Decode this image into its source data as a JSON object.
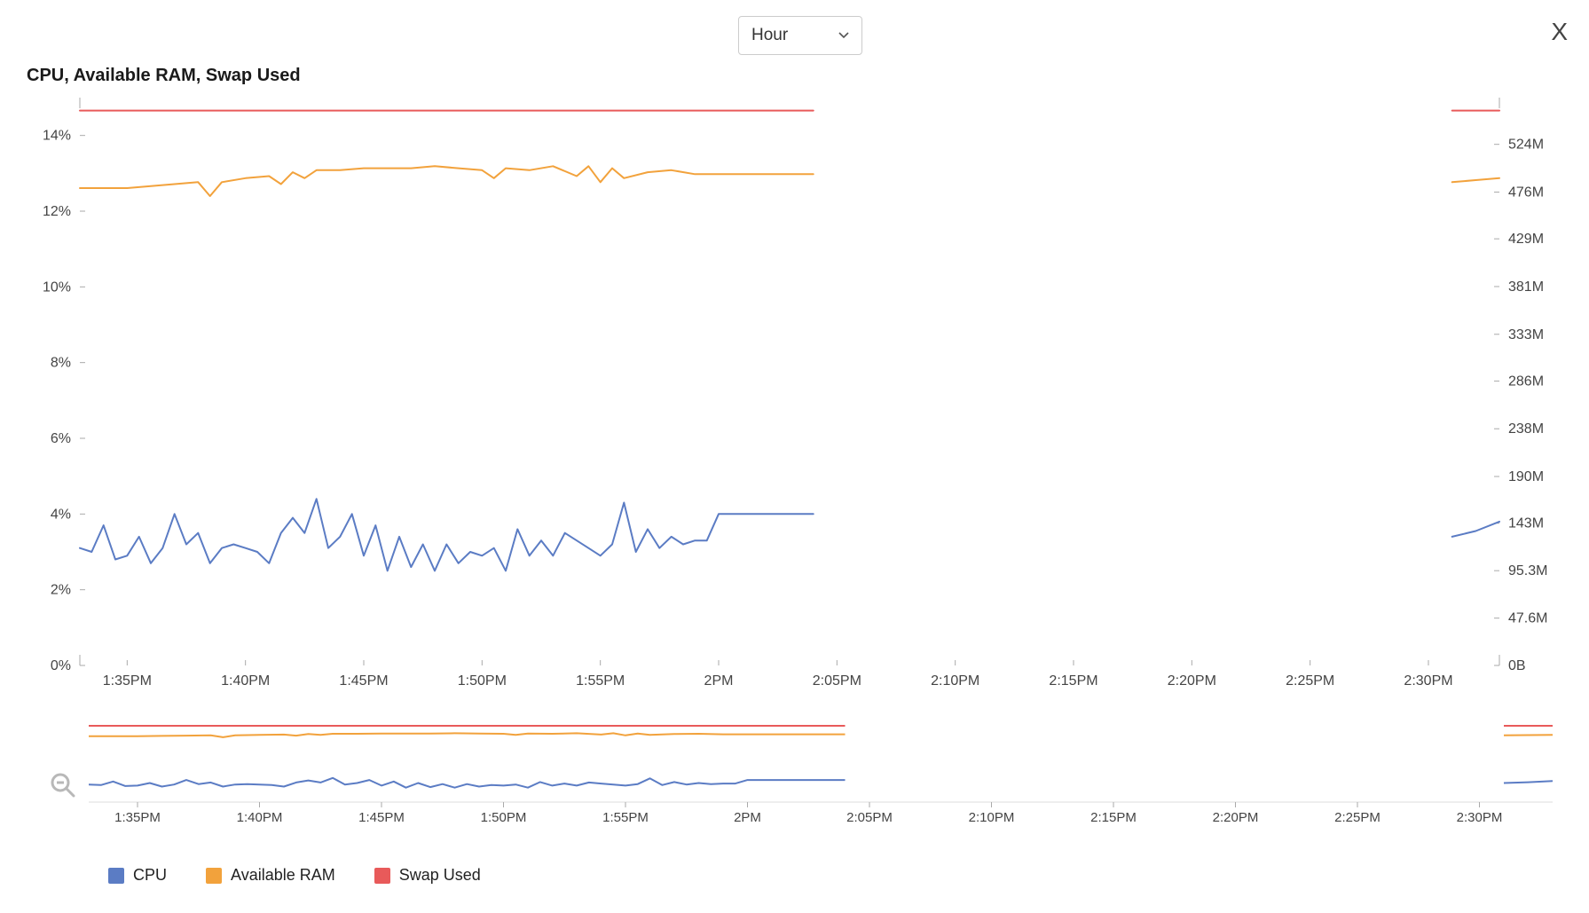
{
  "dropdown": {
    "selected": "Hour"
  },
  "close_label": "X",
  "chart": {
    "type": "line",
    "title": "CPU, Available RAM, Swap Used",
    "background_color": "#ffffff",
    "axis_color": "#666666",
    "tick_font_size": 16,
    "tick_color": "#444444",
    "title_font_size": 20,
    "left_axis": {
      "min": 0,
      "max": 15,
      "ticks": [
        0,
        2,
        4,
        6,
        8,
        10,
        12,
        14
      ],
      "labels": [
        "0%",
        "2%",
        "4%",
        "6%",
        "8%",
        "10%",
        "12%",
        "14%"
      ]
    },
    "right_axis": {
      "min": 0,
      "max": 571,
      "ticks": [
        0,
        47.6,
        95.3,
        143,
        190,
        238,
        286,
        333,
        381,
        429,
        476,
        524
      ],
      "labels": [
        "0B",
        "47.6M",
        "95.3M",
        "143M",
        "190M",
        "238M",
        "286M",
        "333M",
        "381M",
        "429M",
        "476M",
        "524M"
      ]
    },
    "x_axis": {
      "min": 0,
      "max": 60,
      "ticks": [
        2,
        7,
        12,
        17,
        22,
        27,
        32,
        37,
        42,
        47,
        52,
        57
      ],
      "labels": [
        "1:35PM",
        "1:40PM",
        "1:45PM",
        "1:50PM",
        "1:55PM",
        "2PM",
        "2:05PM",
        "2:10PM",
        "2:15PM",
        "2:20PM",
        "2:25PM",
        "2:30PM"
      ]
    },
    "series": [
      {
        "name": "CPU",
        "axis": "left",
        "color": "#5b7cc4",
        "width": 2,
        "segments": [
          {
            "x": [
              0,
              0.5,
              1,
              1.5,
              2,
              2.5,
              3,
              3.5,
              4,
              4.5,
              5,
              5.5,
              6,
              6.5,
              7,
              7.5,
              8,
              8.5,
              9,
              9.5,
              10,
              10.5,
              11,
              11.5,
              12,
              12.5,
              13,
              13.5,
              14,
              14.5,
              15,
              15.5,
              16,
              16.5,
              17,
              17.5,
              18,
              18.5,
              19,
              19.5,
              20,
              20.5,
              21,
              21.5,
              22,
              22.5,
              23,
              23.5,
              24,
              24.5,
              25,
              25.5,
              26,
              26.5,
              27,
              27.5,
              28,
              29,
              30,
              31
            ],
            "y": [
              3.1,
              3.0,
              3.7,
              2.8,
              2.9,
              3.4,
              2.7,
              3.1,
              4.0,
              3.2,
              3.5,
              2.7,
              3.1,
              3.2,
              3.1,
              3.0,
              2.7,
              3.5,
              3.9,
              3.5,
              4.4,
              3.1,
              3.4,
              4.0,
              2.9,
              3.7,
              2.5,
              3.4,
              2.6,
              3.2,
              2.5,
              3.2,
              2.7,
              3.0,
              2.9,
              3.1,
              2.5,
              3.6,
              2.9,
              3.3,
              2.9,
              3.5,
              3.3,
              3.1,
              2.9,
              3.2,
              4.3,
              3.0,
              3.6,
              3.1,
              3.4,
              3.2,
              3.3,
              3.3,
              4.0,
              4.0,
              4.0,
              4.0,
              4.0,
              4.0
            ]
          },
          {
            "x": [
              58,
              59,
              60
            ],
            "y": [
              3.4,
              3.55,
              3.8
            ]
          }
        ]
      },
      {
        "name": "Available RAM",
        "axis": "right",
        "color": "#f2a23c",
        "width": 2,
        "segments": [
          {
            "x": [
              0,
              1,
              2,
              3,
              4,
              5,
              5.5,
              6,
              7,
              8,
              8.5,
              9,
              9.5,
              10,
              11,
              12,
              13,
              14,
              15,
              16,
              17,
              17.5,
              18,
              19,
              20,
              21,
              21.5,
              22,
              22.5,
              23,
              24,
              25,
              26,
              27,
              28,
              29,
              30,
              31
            ],
            "y": [
              480,
              480,
              480,
              482,
              484,
              486,
              472,
              486,
              490,
              492,
              484,
              496,
              490,
              498,
              498,
              500,
              500,
              500,
              502,
              500,
              498,
              490,
              500,
              498,
              502,
              492,
              502,
              486,
              500,
              490,
              496,
              498,
              494,
              494,
              494,
              494,
              494,
              494
            ]
          },
          {
            "x": [
              58,
              59,
              60
            ],
            "y": [
              486,
              488,
              490
            ]
          }
        ]
      },
      {
        "name": "Swap Used",
        "axis": "right",
        "color": "#e85a5a",
        "width": 2,
        "segments": [
          {
            "x": [
              0,
              31
            ],
            "y": [
              558,
              558
            ]
          },
          {
            "x": [
              58,
              60
            ],
            "y": [
              558,
              558
            ]
          }
        ]
      }
    ]
  },
  "legend": [
    {
      "label": "CPU",
      "color": "#5b7cc4"
    },
    {
      "label": "Available RAM",
      "color": "#f2a23c"
    },
    {
      "label": "Swap Used",
      "color": "#e85a5a"
    }
  ]
}
